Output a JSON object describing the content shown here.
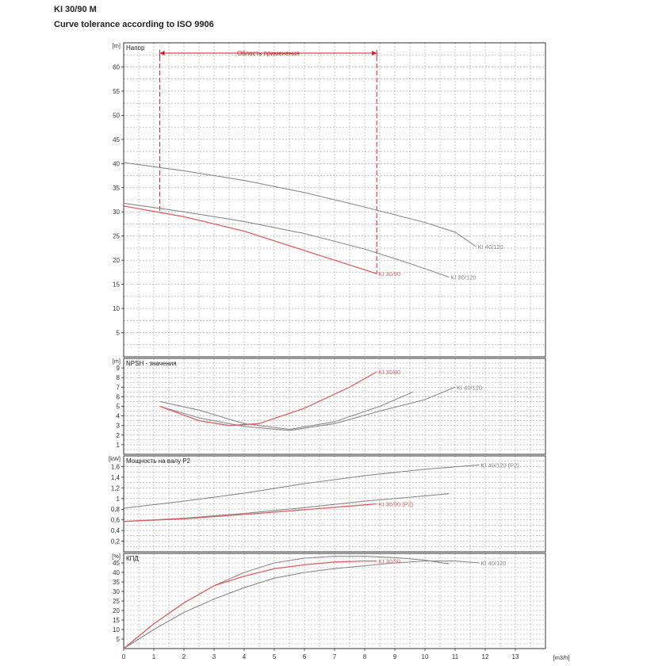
{
  "header": {
    "title": "KI 30/90 M",
    "subtitle": "Curve tolerance according to ISO 9906"
  },
  "colors": {
    "highlight": "#e06060",
    "other": "#8a8a8a",
    "grid": "#a0a0a0",
    "range": "#cc2222"
  },
  "chart_data": [
    {
      "type": "line",
      "panel": "head",
      "title": "Напор",
      "unit_label": "[m]",
      "xlim": [
        0,
        14
      ],
      "ylim": [
        0,
        65
      ],
      "yticks": [
        5,
        10,
        15,
        20,
        25,
        30,
        35,
        40,
        45,
        50,
        55,
        60
      ],
      "annotation": {
        "label": "Область применения",
        "x_start": 1.2,
        "x_end": 8.4
      },
      "series": [
        {
          "name": "KI 40/120",
          "color": "#8a8a8a",
          "highlight": false,
          "x": [
            0,
            2,
            4,
            6,
            8,
            10,
            11,
            11.7
          ],
          "y": [
            40.2,
            38.5,
            36.5,
            34,
            31,
            27.8,
            25.8,
            22.8
          ]
        },
        {
          "name": "KI 30/120",
          "color": "#8a8a8a",
          "highlight": false,
          "x": [
            0,
            2,
            4,
            6,
            8,
            9.5,
            10.8
          ],
          "y": [
            31.8,
            30,
            28,
            25.5,
            22.3,
            19.3,
            16.5
          ]
        },
        {
          "name": "KI 30/90",
          "color": "#e06060",
          "highlight": true,
          "x": [
            0,
            2,
            4,
            6,
            7.5,
            8.4
          ],
          "y": [
            31.2,
            29,
            26,
            22,
            19,
            17.2
          ]
        }
      ]
    },
    {
      "type": "line",
      "panel": "npsh",
      "title": "NPSH - значения",
      "unit_label": "[m]",
      "xlim": [
        0,
        14
      ],
      "ylim": [
        0,
        10
      ],
      "yticks": [
        1,
        2,
        3,
        4,
        5,
        6,
        7,
        8,
        9
      ],
      "series": [
        {
          "name": "KI 40/120",
          "color": "#8a8a8a",
          "highlight": false,
          "x": [
            1.2,
            2.5,
            4,
            5.5,
            7,
            8.5,
            10,
            11
          ],
          "y": [
            5,
            3.8,
            2.9,
            2.5,
            3.2,
            4.5,
            5.7,
            7
          ]
        },
        {
          "name": "",
          "color": "#8a8a8a",
          "highlight": false,
          "x": [
            1.2,
            2.5,
            4,
            5.5,
            7,
            8.5,
            9.6
          ],
          "y": [
            5.5,
            4.6,
            3.2,
            2.6,
            3.4,
            5,
            6.5
          ]
        },
        {
          "name": "KI 30/90",
          "color": "#e06060",
          "highlight": true,
          "x": [
            1.2,
            2.5,
            3.5,
            4.5,
            6,
            7.5,
            8.4
          ],
          "y": [
            5,
            3.5,
            3,
            3.2,
            4.8,
            7,
            8.6
          ]
        }
      ]
    },
    {
      "type": "line",
      "panel": "power",
      "title": "Мощность на валу P2",
      "unit_label": "[kW]",
      "xlim": [
        0,
        14
      ],
      "ylim": [
        0,
        1.8
      ],
      "yticks": [
        0.2,
        0.4,
        0.6,
        0.8,
        1,
        1.2,
        1.4,
        1.6
      ],
      "series": [
        {
          "name": "KI 40/120 (P2)",
          "color": "#8a8a8a",
          "highlight": false,
          "x": [
            0,
            2,
            4,
            6,
            8,
            10,
            11.8
          ],
          "y": [
            0.82,
            0.95,
            1.1,
            1.28,
            1.43,
            1.55,
            1.63
          ]
        },
        {
          "name": "",
          "color": "#8a8a8a",
          "highlight": false,
          "x": [
            0,
            2,
            4,
            6,
            8,
            10,
            10.8
          ],
          "y": [
            0.57,
            0.63,
            0.72,
            0.83,
            0.95,
            1.05,
            1.09
          ]
        },
        {
          "name": "KI 30/90 (P2)",
          "color": "#e06060",
          "highlight": true,
          "x": [
            0,
            2,
            4,
            6,
            8,
            8.4
          ],
          "y": [
            0.57,
            0.62,
            0.7,
            0.79,
            0.88,
            0.9
          ]
        }
      ]
    },
    {
      "type": "line",
      "panel": "efficiency",
      "title": "КПД",
      "unit_label": "[%]",
      "xlim": [
        0,
        14
      ],
      "xlabel": "[m3/h]",
      "xticks": [
        0,
        1,
        2,
        3,
        4,
        5,
        6,
        7,
        8,
        9,
        10,
        11,
        12,
        13
      ],
      "ylim": [
        0,
        50
      ],
      "yticks": [
        5,
        10,
        15,
        20,
        25,
        30,
        35,
        40,
        45
      ],
      "series": [
        {
          "name": "KI 40/120",
          "color": "#8a8a8a",
          "highlight": false,
          "x": [
            0,
            1,
            2,
            3,
            4,
            5,
            6,
            7,
            8,
            9,
            10,
            11,
            11.8
          ],
          "y": [
            0,
            10,
            19,
            26,
            32,
            37,
            40,
            42,
            43.5,
            45,
            46,
            46,
            45
          ]
        },
        {
          "name": "",
          "color": "#8a8a8a",
          "highlight": false,
          "x": [
            0,
            1,
            2,
            3,
            4,
            5,
            6,
            7,
            8,
            9,
            10,
            10.8
          ],
          "y": [
            0,
            13,
            24,
            33,
            40,
            45,
            47.5,
            48.5,
            48.5,
            47.8,
            46.5,
            44.5
          ]
        },
        {
          "name": "KI 30/90",
          "color": "#e06060",
          "highlight": true,
          "x": [
            0,
            1,
            2,
            3,
            4,
            5,
            6,
            7,
            8,
            8.4
          ],
          "y": [
            0,
            13,
            24,
            33,
            38,
            42,
            44,
            45.5,
            46,
            46
          ]
        }
      ]
    }
  ]
}
